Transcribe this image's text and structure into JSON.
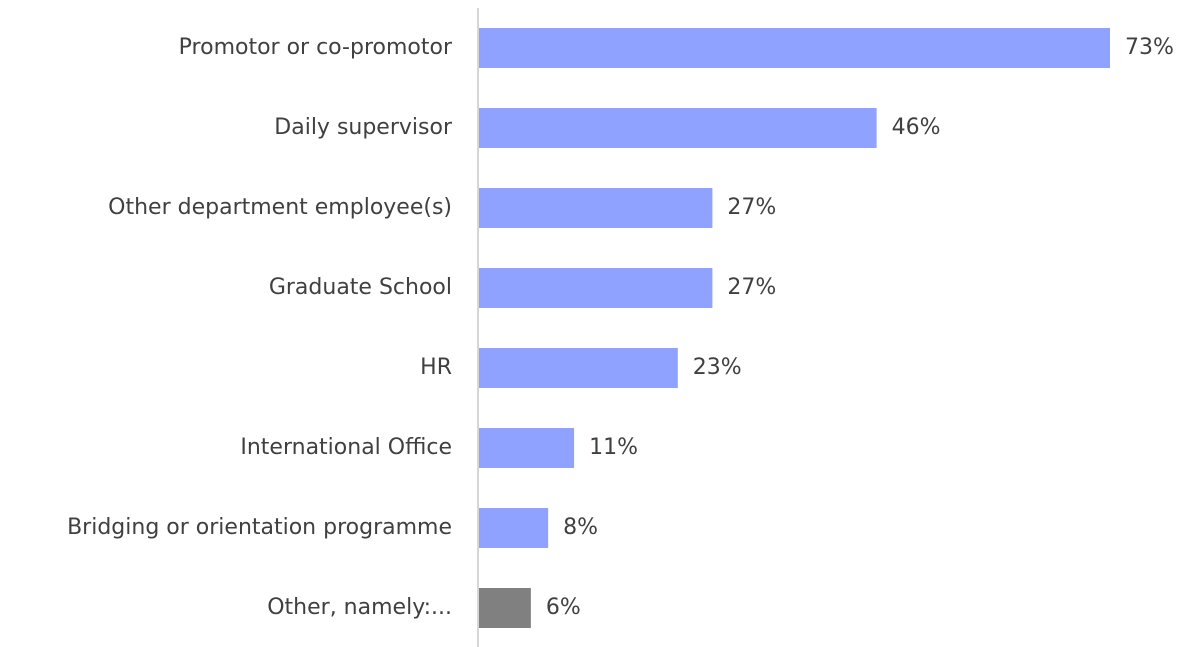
{
  "chart_data": {
    "type": "barh",
    "categories": [
      "Promotor or co-promotor",
      "Daily supervisor",
      "Other department employee(s)",
      "Graduate School",
      "HR",
      "International Office",
      "Bridging or orientation programme",
      "Other, namely:..."
    ],
    "values": [
      73,
      46,
      27,
      27,
      23,
      11,
      8,
      6
    ],
    "value_labels": [
      "73%",
      "46%",
      "27%",
      "27%",
      "23%",
      "11%",
      "8%",
      "6%"
    ],
    "colors": [
      "#8fa2ff",
      "#8fa2ff",
      "#8fa2ff",
      "#8fa2ff",
      "#8fa2ff",
      "#8fa2ff",
      "#8fa2ff",
      "#808080"
    ]
  }
}
